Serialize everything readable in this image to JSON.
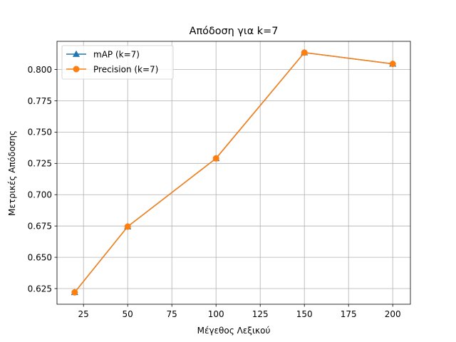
{
  "chart_data": {
    "type": "line",
    "title": "Απόδοση για k=7",
    "xlabel": "Μέγεθος Λεξικού",
    "ylabel": "Μετρικές Απόδοσης",
    "x": [
      20,
      50,
      100,
      150,
      200
    ],
    "series": [
      {
        "name": "mAP (k=7)",
        "color": "#1f77b4",
        "marker": "triangle",
        "values": [
          0.622,
          0.6745,
          0.729,
          0.8135,
          0.8045
        ]
      },
      {
        "name": "Precision (k=7)",
        "color": "#ff7f0e",
        "marker": "circle",
        "values": [
          0.622,
          0.6745,
          0.729,
          0.8135,
          0.8045
        ]
      }
    ],
    "xlim": [
      10,
      210
    ],
    "ylim": [
      0.6125,
      0.8225
    ],
    "xticks": [
      25,
      50,
      75,
      100,
      125,
      150,
      175,
      200
    ],
    "yticks": [
      0.625,
      0.65,
      0.675,
      0.7,
      0.725,
      0.75,
      0.775,
      0.8
    ],
    "grid": true,
    "legend_position": "upper-left"
  }
}
